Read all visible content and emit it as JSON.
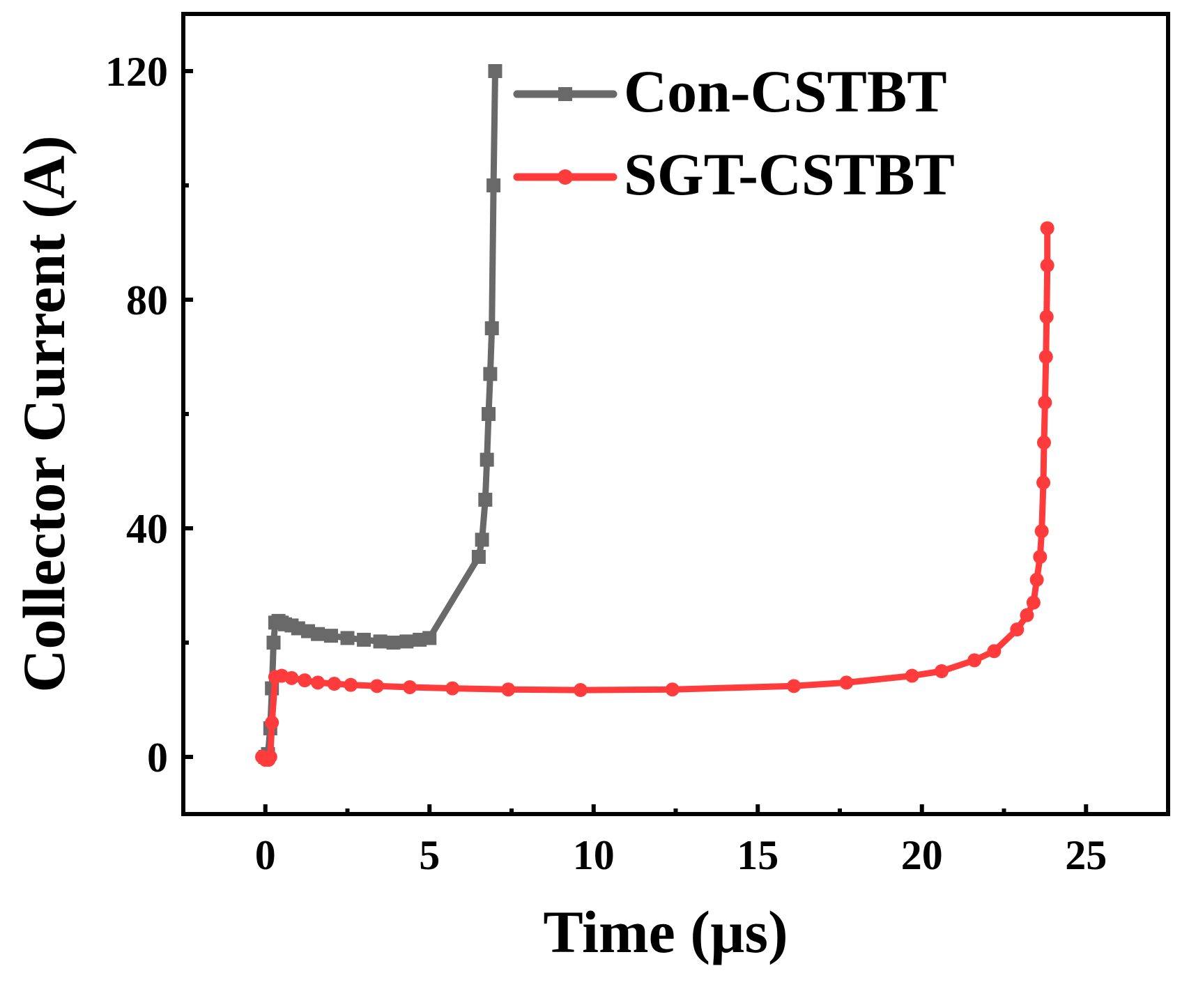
{
  "chart_data": {
    "type": "line",
    "title": "",
    "xlabel": "Time (µs)",
    "ylabel": "Collector Current (A)",
    "xlim": [
      -2.5,
      27.5
    ],
    "ylim": [
      -10,
      130
    ],
    "xticks": [
      0,
      5,
      10,
      15,
      20,
      25
    ],
    "xtick_labels": [
      "0",
      "5",
      "10",
      "15",
      "20",
      "25"
    ],
    "yticks": [
      0,
      40,
      80,
      120
    ],
    "ytick_labels": [
      "0",
      "40",
      "80",
      "120"
    ],
    "legend_position": "top-right",
    "series": [
      {
        "name": "Con-CSTBT",
        "color": "#696969",
        "marker": "square",
        "x": [
          0,
          0.08,
          0.15,
          0.2,
          0.25,
          0.3,
          0.4,
          0.5,
          0.6,
          0.8,
          1.0,
          1.3,
          1.6,
          2.0,
          2.5,
          3.0,
          3.5,
          3.9,
          4.3,
          4.7,
          5.0,
          6.5,
          6.6,
          6.7,
          6.75,
          6.8,
          6.85,
          6.9,
          6.95,
          7.0
        ],
        "y": [
          0,
          0.5,
          5,
          12,
          20,
          23.5,
          23.8,
          23.5,
          23.2,
          23.0,
          22.5,
          22.0,
          21.5,
          21.2,
          20.8,
          20.5,
          20.2,
          20.0,
          20.2,
          20.5,
          20.8,
          35,
          38,
          45,
          52,
          60,
          67,
          75,
          100,
          120
        ]
      },
      {
        "name": "SGT-CSTBT",
        "color": "#ff3b3b",
        "marker": "circle",
        "x": [
          -0.1,
          0,
          0.1,
          0.15,
          0.2,
          0.3,
          0.5,
          0.8,
          1.2,
          1.6,
          2.1,
          2.6,
          3.4,
          4.4,
          5.7,
          7.4,
          9.6,
          12.4,
          16.1,
          17.7,
          19.7,
          20.6,
          21.6,
          22.2,
          22.9,
          23.2,
          23.4,
          23.5,
          23.6,
          23.65,
          23.7,
          23.72,
          23.75,
          23.78,
          23.8,
          23.82,
          23.82
        ],
        "y": [
          0,
          -0.5,
          -0.5,
          0,
          6,
          14,
          14.2,
          13.8,
          13.4,
          13.0,
          12.8,
          12.6,
          12.4,
          12.2,
          12.0,
          11.8,
          11.7,
          11.8,
          12.4,
          13.0,
          14.2,
          15.0,
          16.9,
          18.5,
          22.3,
          24.8,
          27.0,
          31.0,
          35.0,
          39.5,
          48.0,
          55.0,
          62.0,
          70.0,
          77.0,
          86.0,
          92.5
        ]
      }
    ]
  }
}
